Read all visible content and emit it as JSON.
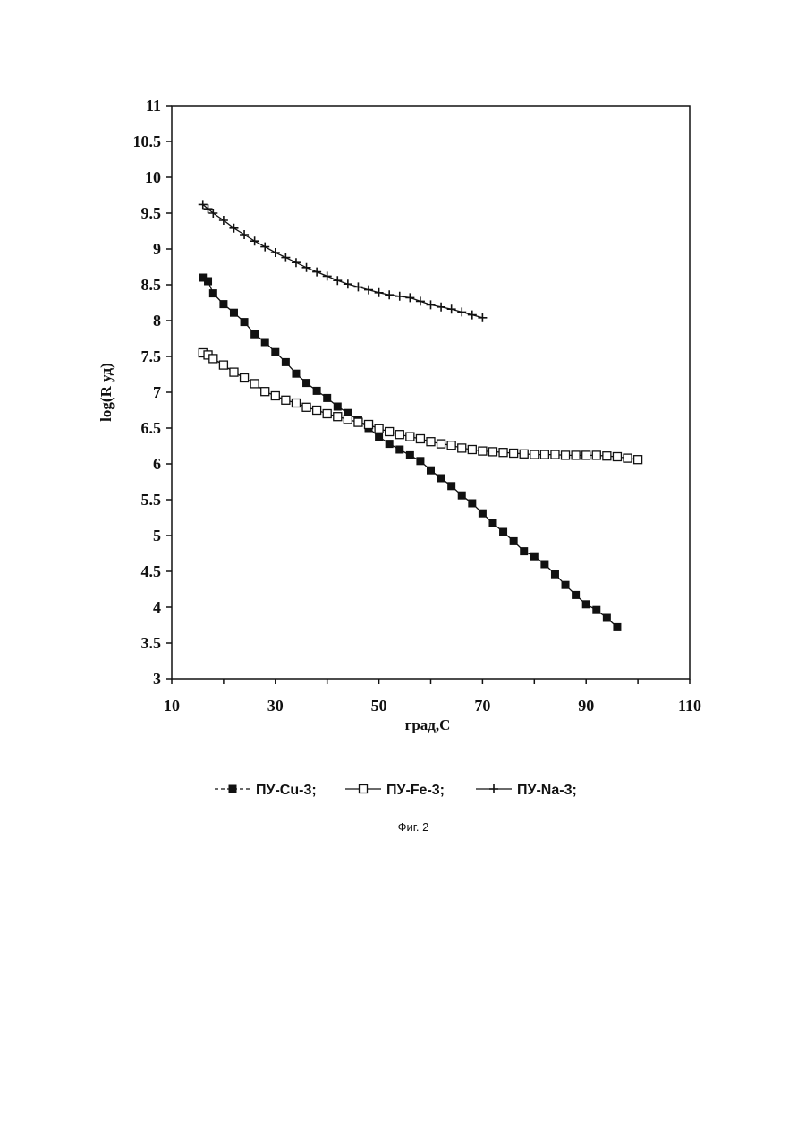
{
  "chart_data": {
    "type": "line",
    "xlabel": "град,С",
    "ylabel": "log(R уд)",
    "xlim": [
      10,
      110
    ],
    "ylim": [
      3,
      11
    ],
    "x_ticks": [
      "10",
      "30",
      "50",
      "70",
      "90",
      "110"
    ],
    "y_ticks": [
      "3",
      "3.5",
      "4",
      "4.5",
      "5",
      "5.5",
      "6",
      "6.5",
      "7",
      "7.5",
      "8",
      "8.5",
      "9",
      "9.5",
      "10",
      "10.5",
      "11"
    ],
    "x_tick_values": [
      10,
      30,
      50,
      70,
      90,
      110
    ],
    "y_tick_values": [
      3,
      3.5,
      4,
      4.5,
      5,
      5.5,
      6,
      6.5,
      7,
      7.5,
      8,
      8.5,
      9,
      9.5,
      10,
      10.5,
      11
    ],
    "grid": false,
    "legend_position": "bottom",
    "series": [
      {
        "name": "ПУ-Cu-3;",
        "marker": "filled-square",
        "x": [
          16,
          17,
          18,
          20,
          22,
          24,
          26,
          28,
          30,
          32,
          34,
          36,
          38,
          40,
          42,
          44,
          46,
          48,
          50,
          52,
          54,
          56,
          58,
          60,
          62,
          64,
          66,
          68,
          70,
          72,
          74,
          76,
          78,
          80,
          82,
          84,
          86,
          88,
          90,
          92,
          94,
          96
        ],
        "y": [
          8.6,
          8.55,
          8.38,
          8.23,
          8.11,
          7.98,
          7.81,
          7.7,
          7.56,
          7.42,
          7.26,
          7.13,
          7.02,
          6.92,
          6.8,
          6.71,
          6.61,
          6.5,
          6.38,
          6.28,
          6.2,
          6.12,
          6.04,
          5.91,
          5.8,
          5.69,
          5.56,
          5.45,
          5.31,
          5.17,
          5.05,
          4.92,
          4.78,
          4.71,
          4.6,
          4.46,
          4.31,
          4.17,
          4.04,
          3.96,
          3.85,
          3.72
        ]
      },
      {
        "name": "ПУ-Fe-3;",
        "marker": "open-square",
        "x": [
          16,
          17,
          18,
          20,
          22,
          24,
          26,
          28,
          30,
          32,
          34,
          36,
          38,
          40,
          42,
          44,
          46,
          48,
          50,
          52,
          54,
          56,
          58,
          60,
          62,
          64,
          66,
          68,
          70,
          72,
          74,
          76,
          78,
          80,
          82,
          84,
          86,
          88,
          90,
          92,
          94,
          96,
          98,
          100
        ],
        "y": [
          7.55,
          7.52,
          7.47,
          7.38,
          7.28,
          7.2,
          7.12,
          7.01,
          6.95,
          6.89,
          6.85,
          6.79,
          6.75,
          6.7,
          6.66,
          6.62,
          6.58,
          6.55,
          6.49,
          6.45,
          6.41,
          6.38,
          6.35,
          6.31,
          6.28,
          6.26,
          6.22,
          6.2,
          6.18,
          6.17,
          6.16,
          6.15,
          6.14,
          6.13,
          6.13,
          6.13,
          6.12,
          6.12,
          6.12,
          6.12,
          6.11,
          6.1,
          6.08,
          6.06
        ]
      },
      {
        "name": "ПУ-Na-3;",
        "marker": "plus",
        "x": [
          16,
          17,
          18,
          20,
          22,
          24,
          26,
          28,
          30,
          32,
          34,
          36,
          38,
          40,
          42,
          44,
          46,
          48,
          50,
          52,
          54,
          56,
          58,
          60,
          62,
          64,
          66,
          68,
          70
        ],
        "y": [
          9.62,
          9.56,
          9.5,
          9.4,
          9.29,
          9.2,
          9.11,
          9.03,
          8.95,
          8.88,
          8.81,
          8.74,
          8.68,
          8.62,
          8.56,
          8.51,
          8.47,
          8.43,
          8.39,
          8.36,
          8.34,
          8.32,
          8.27,
          8.22,
          8.19,
          8.16,
          8.12,
          8.08,
          8.04
        ]
      }
    ],
    "legend": [
      "ПУ-Cu-3;",
      "ПУ-Fe-3;",
      "ПУ-Na-3;"
    ]
  },
  "caption": "Фиг. 2"
}
